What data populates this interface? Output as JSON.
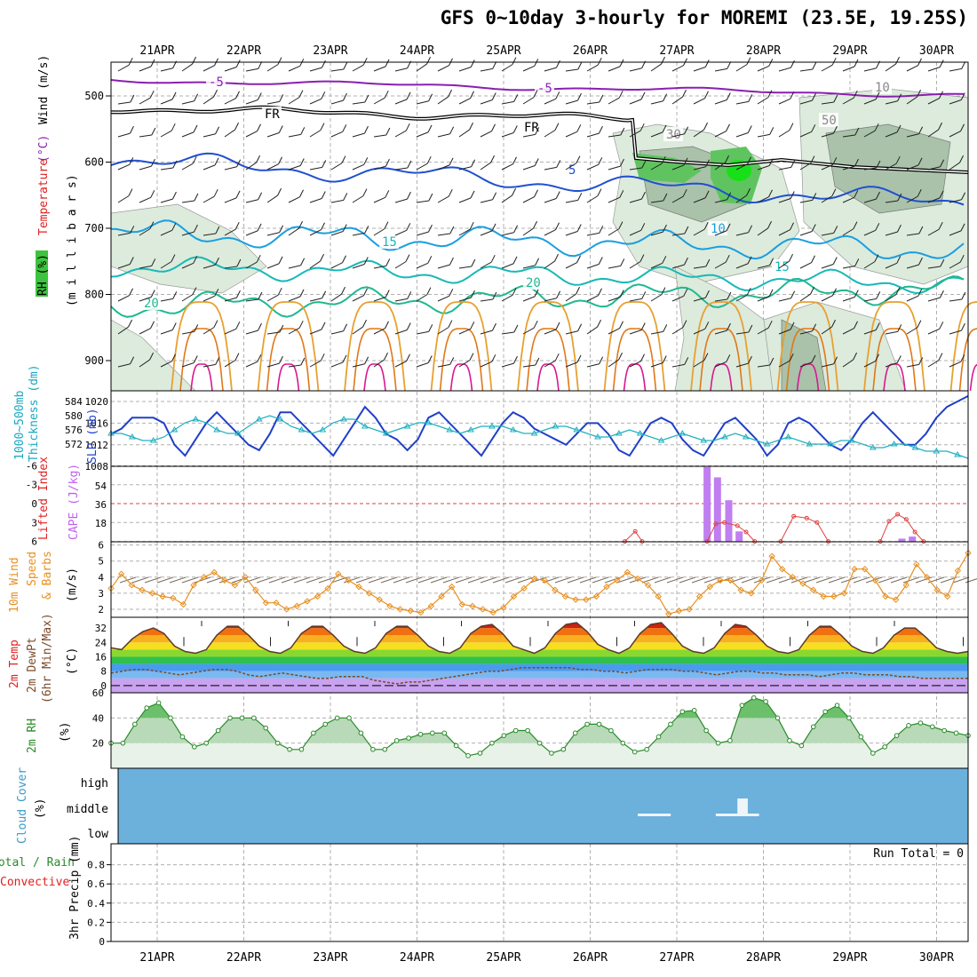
{
  "title": "GFS 0~10day 3-hourly for MOREMI (23.5E, 19.25S)",
  "chart_data": [
    {
      "type": "contour",
      "panel": "upper-air",
      "xlabels": [
        "21APR",
        "22APR",
        "23APR",
        "24APR",
        "25APR",
        "26APR",
        "27APR",
        "28APR",
        "29APR",
        "30APR"
      ],
      "ylabel": "(m i l l i b a r s)",
      "yticks": [
        "500",
        "600",
        "700",
        "800",
        "900"
      ],
      "legend": {
        "rh": "RH (%)",
        "temp_a": "Temperature",
        "temp_b": "(°C)",
        "wind": "Wind (m/s)"
      },
      "contour_labels": [
        {
          "text": "-5",
          "line": "t-5a"
        },
        {
          "text": "-5",
          "line": "t-5b"
        },
        {
          "text": "FR",
          "line": "frz1"
        },
        {
          "text": "FR",
          "line": "frz2"
        },
        {
          "text": "5",
          "line": "t5"
        },
        {
          "text": "10",
          "line": "t10"
        },
        {
          "text": "15",
          "line": "t15a"
        },
        {
          "text": "15",
          "line": "t15b"
        },
        {
          "text": "20",
          "line": "t20a"
        },
        {
          "text": "20",
          "line": "t20b"
        },
        {
          "text": "10",
          "line": "wind10"
        },
        {
          "text": "30",
          "line": "rh30"
        },
        {
          "text": "50",
          "line": "rh50"
        }
      ]
    },
    {
      "type": "line",
      "panel": "thickness-slp",
      "label_left": "1000~500mb",
      "label_left2": "Thickness (dm)",
      "label_right": "SLP (mb)",
      "thickness_ticks": [
        "584",
        "580",
        "576",
        "572"
      ],
      "slp_ticks": [
        "1020",
        "1016",
        "1012",
        "1008"
      ],
      "series": [
        {
          "name": "SLP",
          "color": "#2040c8",
          "values": [
            1014,
            1015,
            1017,
            1017,
            1017,
            1016,
            1012,
            1010,
            1013,
            1016,
            1018,
            1016,
            1014,
            1012,
            1011,
            1014,
            1018,
            1018,
            1016,
            1014,
            1012,
            1010,
            1013,
            1016,
            1019,
            1017,
            1014,
            1013,
            1011,
            1013,
            1017,
            1018,
            1016,
            1014,
            1012,
            1010,
            1013,
            1016,
            1018,
            1017,
            1015,
            1014,
            1013,
            1012,
            1014,
            1016,
            1016,
            1014,
            1011,
            1010,
            1013,
            1016,
            1017,
            1016,
            1013,
            1011,
            1010,
            1013,
            1016,
            1017,
            1015,
            1013,
            1010,
            1012,
            1016,
            1017,
            1016,
            1014,
            1012,
            1011,
            1013,
            1016,
            1018,
            1016,
            1014,
            1012,
            1012,
            1014,
            1017,
            1019,
            1020,
            1021
          ]
        },
        {
          "name": "Thickness",
          "color": "#20b0c0",
          "values": [
            575,
            575,
            574,
            573,
            573,
            574,
            576,
            578,
            579,
            578,
            576,
            575,
            575,
            577,
            579,
            580,
            579,
            577,
            576,
            575,
            576,
            578,
            579,
            579,
            577,
            576,
            575,
            576,
            577,
            578,
            578,
            577,
            576,
            575,
            576,
            577,
            577,
            577,
            576,
            575,
            575,
            576,
            577,
            577,
            576,
            575,
            574,
            574,
            575,
            576,
            575,
            574,
            573,
            574,
            575,
            574,
            573,
            573,
            574,
            575,
            574,
            573,
            572,
            573,
            574,
            573,
            572,
            572,
            572,
            573,
            573,
            572,
            571,
            571,
            572,
            572,
            571,
            570,
            570,
            570,
            569,
            568
          ]
        }
      ]
    },
    {
      "type": "bar-line",
      "panel": "cape-li",
      "label_li": "Lifted Index",
      "label_cape": "CAPE (J/kg)",
      "li_ticks": [
        "-6",
        "-3",
        "0",
        "3",
        "6"
      ],
      "cape_ticks": [
        "54",
        "36",
        "18"
      ],
      "cape_bars": [
        {
          "day": 6.35,
          "value": 72
        },
        {
          "day": 6.47,
          "value": 62
        },
        {
          "day": 6.6,
          "value": 40
        },
        {
          "day": 6.72,
          "value": 10
        },
        {
          "day": 8.6,
          "value": 3
        },
        {
          "day": 8.72,
          "value": 5
        }
      ],
      "li_segments": [
        [
          [
            5.4,
            6
          ],
          [
            5.52,
            4.4
          ],
          [
            5.6,
            6
          ]
        ],
        [
          [
            6.35,
            6
          ],
          [
            6.45,
            3.2
          ],
          [
            6.55,
            3
          ],
          [
            6.7,
            3.5
          ],
          [
            6.8,
            4.5
          ],
          [
            6.9,
            6
          ]
        ],
        [
          [
            7.2,
            6
          ],
          [
            7.35,
            2
          ],
          [
            7.5,
            2.3
          ],
          [
            7.62,
            3
          ],
          [
            7.75,
            6
          ]
        ],
        [
          [
            8.35,
            6
          ],
          [
            8.45,
            2.8
          ],
          [
            8.55,
            1.7
          ],
          [
            8.65,
            2.5
          ],
          [
            8.75,
            4.5
          ],
          [
            8.85,
            6
          ]
        ]
      ],
      "li_zero": 0
    },
    {
      "type": "line",
      "panel": "wind10m",
      "label": "10m Wind",
      "label2": "Speed",
      "label3": "& Barbs",
      "unit": "(m/s)",
      "yticks": [
        "6",
        "5",
        "4",
        "3",
        "2"
      ],
      "ylim": [
        1.5,
        6.2
      ],
      "series": [
        {
          "name": "10m wind speed",
          "color": "#e89020",
          "values": [
            3.3,
            4.2,
            3.5,
            3.2,
            3.0,
            2.8,
            2.7,
            2.3,
            3.5,
            4.0,
            4.3,
            3.8,
            3.5,
            4.0,
            3.2,
            2.4,
            2.4,
            2.0,
            2.2,
            2.5,
            2.8,
            3.3,
            4.2,
            3.8,
            3.4,
            3.0,
            2.6,
            2.2,
            2.0,
            1.9,
            1.8,
            2.2,
            2.8,
            3.4,
            2.3,
            2.2,
            2.0,
            1.8,
            2.1,
            2.8,
            3.3,
            3.9,
            3.8,
            3.2,
            2.8,
            2.6,
            2.6,
            2.8,
            3.4,
            3.8,
            4.3,
            3.9,
            3.5,
            2.8,
            1.7,
            1.9,
            2.0,
            2.8,
            3.4,
            3.8,
            3.8,
            3.2,
            3.0,
            3.8,
            5.3,
            4.5,
            4.0,
            3.6,
            3.2,
            2.8,
            2.8,
            3.0,
            4.5,
            4.5,
            3.8,
            2.8,
            2.6,
            3.5,
            4.8,
            4.0,
            3.2,
            2.8,
            4.4,
            5.5
          ]
        }
      ]
    },
    {
      "type": "area",
      "panel": "temp2m",
      "label": "2m Temp",
      "label2": "2m DewPt",
      "label3": "(6hr Min/Max)",
      "unit": "(°C)",
      "yticks": [
        "32",
        "24",
        "16",
        "8",
        "0"
      ],
      "ylim": [
        -4,
        38
      ],
      "series": [
        {
          "name": "2m temperature",
          "values": [
            21,
            20,
            26,
            30,
            32,
            29,
            22,
            19,
            18,
            20,
            28,
            33,
            33,
            28,
            22,
            19,
            18,
            21,
            29,
            33,
            33,
            28,
            22,
            19,
            18,
            21,
            29,
            33,
            33,
            28,
            22,
            19,
            18,
            21,
            29,
            33,
            34,
            29,
            22,
            20,
            18,
            21,
            29,
            34,
            35,
            30,
            23,
            20,
            18,
            21,
            29,
            34,
            35,
            29,
            22,
            19,
            18,
            21,
            29,
            34,
            33,
            28,
            22,
            19,
            18,
            20,
            28,
            33,
            33,
            28,
            22,
            19,
            18,
            21,
            28,
            32,
            32,
            27,
            21,
            19,
            18,
            19
          ]
        },
        {
          "name": "2m dewpoint",
          "values": [
            7,
            8,
            9,
            9,
            8,
            7,
            6,
            7,
            8,
            9,
            9,
            8,
            6,
            5,
            6,
            7,
            6,
            5,
            4,
            4,
            5,
            5,
            5,
            3,
            2,
            1,
            2,
            2,
            3,
            4,
            5,
            6,
            7,
            8,
            8,
            9,
            10,
            10,
            10,
            10,
            10,
            9,
            9,
            8,
            8,
            7,
            8,
            9,
            9,
            9,
            8,
            8,
            7,
            6,
            7,
            8,
            8,
            7,
            7,
            6,
            6,
            6,
            5,
            6,
            7,
            7,
            6,
            6,
            6,
            5,
            5,
            4,
            4,
            4,
            4,
            4
          ]
        }
      ]
    },
    {
      "type": "area",
      "panel": "rh2m",
      "label": "2m RH",
      "unit": "(%)",
      "yticks": [
        "60",
        "40",
        "20"
      ],
      "ylim": [
        0,
        60
      ],
      "series": [
        {
          "name": "2m RH",
          "color": "#2a8a2a",
          "values": [
            20,
            20,
            35,
            48,
            52,
            40,
            25,
            17,
            20,
            30,
            40,
            40,
            40,
            32,
            20,
            15,
            15,
            28,
            35,
            40,
            40,
            28,
            15,
            15,
            22,
            24,
            27,
            28,
            28,
            18,
            10,
            12,
            20,
            26,
            30,
            30,
            20,
            12,
            15,
            28,
            35,
            35,
            30,
            20,
            13,
            15,
            25,
            35,
            45,
            46,
            30,
            20,
            22,
            50,
            56,
            53,
            40,
            22,
            18,
            33,
            45,
            50,
            40,
            25,
            12,
            17,
            26,
            34,
            36,
            33,
            30,
            28,
            26
          ]
        }
      ]
    },
    {
      "type": "bar",
      "panel": "cloud",
      "label": "Cloud Cover",
      "unit": "(%)",
      "levels": [
        "high",
        "middle",
        "low"
      ],
      "low_segments": [
        [
          5.55,
          5.93
        ],
        [
          6.45,
          6.95
        ]
      ],
      "middle_bars": [
        [
          6.7,
          6.82
        ]
      ]
    },
    {
      "type": "bar",
      "panel": "precip",
      "label": "Total / Rain",
      "label2": "Convective",
      "unit": "3hr Precip (mm)",
      "yticks": [
        "0.8",
        "0.6",
        "0.4",
        "0.2",
        "0"
      ],
      "ylim": [
        0,
        1.0
      ],
      "run_total": "Run Total = 0",
      "values": []
    }
  ]
}
